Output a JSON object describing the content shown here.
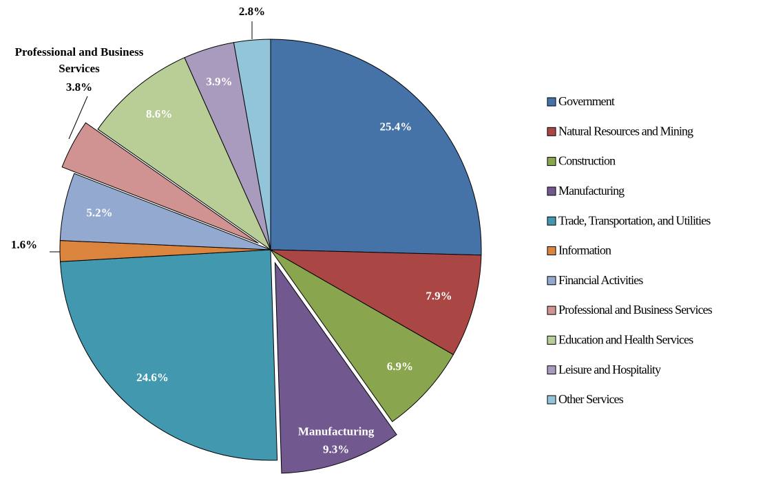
{
  "chart_data": {
    "type": "pie",
    "categories": [
      "Government",
      "Natural Resources and Mining",
      "Construction",
      "Manufacturing",
      "Trade, Transportation, and Utilities",
      "Information",
      "Financial Activities",
      "Professional and Business Services",
      "Education and Health Services",
      "Leisure and Hospitality",
      "Other Services"
    ],
    "values": [
      25.4,
      7.9,
      6.9,
      9.3,
      24.6,
      1.6,
      5.2,
      3.8,
      8.6,
      3.9,
      2.8
    ],
    "value_labels": [
      "25.4%",
      "7.9%",
      "6.9%",
      "9.3%",
      "24.6%",
      "1.6%",
      "5.2%",
      "3.8%",
      "8.6%",
      "3.9%",
      "2.8%"
    ],
    "colors": [
      "#4572a7",
      "#aa4643",
      "#89a54e",
      "#71588f",
      "#4198af",
      "#db843d",
      "#93a9cf",
      "#d19392",
      "#b9cd96",
      "#a99bbd",
      "#92c5d9"
    ],
    "explode": [
      false,
      false,
      false,
      true,
      false,
      false,
      false,
      true,
      false,
      false,
      false
    ],
    "legend": "right"
  }
}
